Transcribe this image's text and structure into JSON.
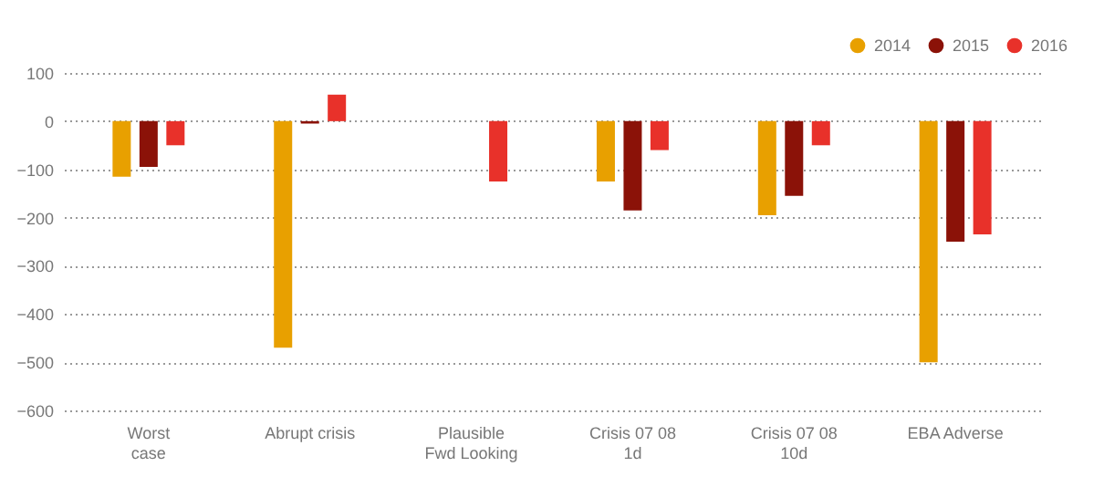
{
  "chart_data": {
    "type": "bar",
    "categories": [
      "Worst\ncase",
      "Abrupt crisis",
      "Plausible\nFwd Looking",
      "Crisis 07 08\n1d",
      "Crisis 07 08\n10d",
      "EBA Adverse"
    ],
    "series": [
      {
        "name": "2014",
        "color": "#e8a000",
        "values": [
          -115,
          -470,
          null,
          -125,
          -195,
          -500
        ]
      },
      {
        "name": "2015",
        "color": "#8b1208",
        "values": [
          -95,
          -5,
          null,
          -185,
          -155,
          -250
        ]
      },
      {
        "name": "2016",
        "color": "#e8312a",
        "values": [
          -50,
          55,
          -125,
          -60,
          -50,
          -235
        ]
      }
    ],
    "ylim": [
      -600,
      100
    ],
    "yticks": [
      -600,
      -500,
      -400,
      -300,
      -200,
      -100,
      0,
      100
    ],
    "grid": "y",
    "legend": "top right"
  }
}
